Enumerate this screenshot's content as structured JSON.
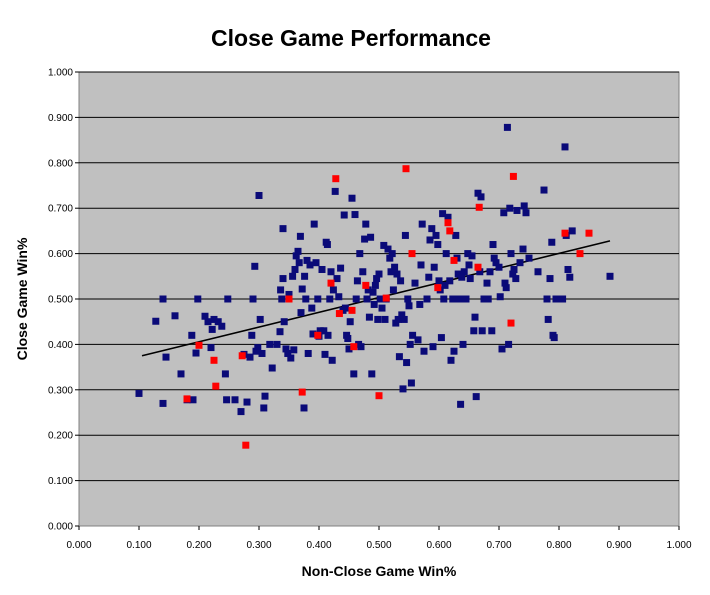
{
  "chart_data": {
    "type": "scatter",
    "title": "Close Game Performance",
    "xlabel": "Non-Close Game Win%",
    "ylabel": "Close Game Win%",
    "xlim": [
      0,
      1
    ],
    "ylim": [
      0,
      1
    ],
    "x_ticks": [
      "0.000",
      "0.100",
      "0.200",
      "0.300",
      "0.400",
      "0.500",
      "0.600",
      "0.700",
      "0.800",
      "0.900",
      "1.000"
    ],
    "y_ticks": [
      "0.000",
      "0.100",
      "0.200",
      "0.300",
      "0.400",
      "0.500",
      "0.600",
      "0.700",
      "0.800",
      "0.900",
      "1.000"
    ],
    "grid": "horizontal",
    "plot_background": "#c0c0c0",
    "trendline": {
      "x": [
        0.105,
        0.885
      ],
      "y": [
        0.375,
        0.628
      ],
      "color": "#000000"
    },
    "series": [
      {
        "color": "#0a0a78",
        "points": [
          [
            0.1,
            0.292
          ],
          [
            0.128,
            0.451
          ],
          [
            0.14,
            0.5
          ],
          [
            0.14,
            0.27
          ],
          [
            0.145,
            0.372
          ],
          [
            0.16,
            0.463
          ],
          [
            0.17,
            0.335
          ],
          [
            0.18,
            0.278
          ],
          [
            0.188,
            0.42
          ],
          [
            0.19,
            0.278
          ],
          [
            0.195,
            0.381
          ],
          [
            0.198,
            0.5
          ],
          [
            0.21,
            0.462
          ],
          [
            0.215,
            0.45
          ],
          [
            0.22,
            0.393
          ],
          [
            0.222,
            0.433
          ],
          [
            0.225,
            0.455
          ],
          [
            0.232,
            0.45
          ],
          [
            0.238,
            0.44
          ],
          [
            0.244,
            0.335
          ],
          [
            0.246,
            0.278
          ],
          [
            0.248,
            0.5
          ],
          [
            0.26,
            0.278
          ],
          [
            0.27,
            0.252
          ],
          [
            0.275,
            0.378
          ],
          [
            0.28,
            0.273
          ],
          [
            0.285,
            0.372
          ],
          [
            0.288,
            0.42
          ],
          [
            0.29,
            0.5
          ],
          [
            0.293,
            0.572
          ],
          [
            0.295,
            0.385
          ],
          [
            0.298,
            0.393
          ],
          [
            0.3,
            0.728
          ],
          [
            0.302,
            0.455
          ],
          [
            0.305,
            0.38
          ],
          [
            0.308,
            0.26
          ],
          [
            0.31,
            0.286
          ],
          [
            0.318,
            0.4
          ],
          [
            0.322,
            0.348
          ],
          [
            0.33,
            0.4
          ],
          [
            0.335,
            0.428
          ],
          [
            0.336,
            0.52
          ],
          [
            0.338,
            0.5
          ],
          [
            0.34,
            0.545
          ],
          [
            0.34,
            0.655
          ],
          [
            0.342,
            0.45
          ],
          [
            0.345,
            0.39
          ],
          [
            0.348,
            0.38
          ],
          [
            0.35,
            0.51
          ],
          [
            0.353,
            0.37
          ],
          [
            0.356,
            0.55
          ],
          [
            0.358,
            0.388
          ],
          [
            0.36,
            0.565
          ],
          [
            0.362,
            0.595
          ],
          [
            0.365,
            0.605
          ],
          [
            0.367,
            0.58
          ],
          [
            0.369,
            0.638
          ],
          [
            0.37,
            0.47
          ],
          [
            0.372,
            0.522
          ],
          [
            0.375,
            0.26
          ],
          [
            0.376,
            0.55
          ],
          [
            0.378,
            0.5
          ],
          [
            0.38,
            0.585
          ],
          [
            0.382,
            0.38
          ],
          [
            0.385,
            0.575
          ],
          [
            0.388,
            0.48
          ],
          [
            0.39,
            0.423
          ],
          [
            0.392,
            0.665
          ],
          [
            0.395,
            0.58
          ],
          [
            0.398,
            0.5
          ],
          [
            0.4,
            0.418
          ],
          [
            0.402,
            0.43
          ],
          [
            0.405,
            0.565
          ],
          [
            0.408,
            0.43
          ],
          [
            0.41,
            0.378
          ],
          [
            0.412,
            0.625
          ],
          [
            0.414,
            0.62
          ],
          [
            0.415,
            0.42
          ],
          [
            0.418,
            0.5
          ],
          [
            0.42,
            0.56
          ],
          [
            0.422,
            0.365
          ],
          [
            0.424,
            0.52
          ],
          [
            0.427,
            0.737
          ],
          [
            0.43,
            0.545
          ],
          [
            0.433,
            0.505
          ],
          [
            0.436,
            0.568
          ],
          [
            0.44,
            0.475
          ],
          [
            0.442,
            0.685
          ],
          [
            0.444,
            0.48
          ],
          [
            0.446,
            0.42
          ],
          [
            0.448,
            0.413
          ],
          [
            0.45,
            0.39
          ],
          [
            0.452,
            0.45
          ],
          [
            0.455,
            0.722
          ],
          [
            0.458,
            0.335
          ],
          [
            0.46,
            0.686
          ],
          [
            0.462,
            0.5
          ],
          [
            0.464,
            0.54
          ],
          [
            0.466,
            0.4
          ],
          [
            0.468,
            0.6
          ],
          [
            0.47,
            0.395
          ],
          [
            0.473,
            0.56
          ],
          [
            0.476,
            0.632
          ],
          [
            0.478,
            0.665
          ],
          [
            0.48,
            0.5
          ],
          [
            0.482,
            0.52
          ],
          [
            0.484,
            0.46
          ],
          [
            0.486,
            0.636
          ],
          [
            0.488,
            0.335
          ],
          [
            0.49,
            0.515
          ],
          [
            0.492,
            0.488
          ],
          [
            0.494,
            0.53
          ],
          [
            0.496,
            0.545
          ],
          [
            0.498,
            0.455
          ],
          [
            0.5,
            0.555
          ],
          [
            0.502,
            0.5
          ],
          [
            0.505,
            0.48
          ],
          [
            0.508,
            0.618
          ],
          [
            0.51,
            0.455
          ],
          [
            0.512,
            0.5
          ],
          [
            0.515,
            0.61
          ],
          [
            0.518,
            0.59
          ],
          [
            0.52,
            0.56
          ],
          [
            0.522,
            0.6
          ],
          [
            0.524,
            0.52
          ],
          [
            0.526,
            0.57
          ],
          [
            0.528,
            0.447
          ],
          [
            0.53,
            0.555
          ],
          [
            0.532,
            0.455
          ],
          [
            0.534,
            0.373
          ],
          [
            0.536,
            0.54
          ],
          [
            0.538,
            0.465
          ],
          [
            0.54,
            0.302
          ],
          [
            0.542,
            0.455
          ],
          [
            0.544,
            0.64
          ],
          [
            0.546,
            0.36
          ],
          [
            0.548,
            0.5
          ],
          [
            0.55,
            0.485
          ],
          [
            0.552,
            0.4
          ],
          [
            0.554,
            0.315
          ],
          [
            0.556,
            0.42
          ],
          [
            0.56,
            0.535
          ],
          [
            0.565,
            0.41
          ],
          [
            0.568,
            0.488
          ],
          [
            0.57,
            0.575
          ],
          [
            0.572,
            0.665
          ],
          [
            0.575,
            0.385
          ],
          [
            0.58,
            0.5
          ],
          [
            0.583,
            0.548
          ],
          [
            0.585,
            0.63
          ],
          [
            0.588,
            0.655
          ],
          [
            0.59,
            0.395
          ],
          [
            0.592,
            0.57
          ],
          [
            0.595,
            0.64
          ],
          [
            0.598,
            0.62
          ],
          [
            0.6,
            0.54
          ],
          [
            0.602,
            0.52
          ],
          [
            0.604,
            0.415
          ],
          [
            0.606,
            0.688
          ],
          [
            0.608,
            0.5
          ],
          [
            0.61,
            0.53
          ],
          [
            0.612,
            0.6
          ],
          [
            0.615,
            0.68
          ],
          [
            0.618,
            0.54
          ],
          [
            0.62,
            0.365
          ],
          [
            0.623,
            0.5
          ],
          [
            0.625,
            0.385
          ],
          [
            0.628,
            0.64
          ],
          [
            0.63,
            0.59
          ],
          [
            0.632,
            0.555
          ],
          [
            0.634,
            0.5
          ],
          [
            0.636,
            0.268
          ],
          [
            0.638,
            0.548
          ],
          [
            0.64,
            0.4
          ],
          [
            0.642,
            0.56
          ],
          [
            0.645,
            0.5
          ],
          [
            0.648,
            0.6
          ],
          [
            0.65,
            0.575
          ],
          [
            0.652,
            0.545
          ],
          [
            0.655,
            0.595
          ],
          [
            0.658,
            0.43
          ],
          [
            0.66,
            0.46
          ],
          [
            0.662,
            0.285
          ],
          [
            0.665,
            0.733
          ],
          [
            0.668,
            0.56
          ],
          [
            0.67,
            0.725
          ],
          [
            0.672,
            0.43
          ],
          [
            0.675,
            0.5
          ],
          [
            0.68,
            0.535
          ],
          [
            0.682,
            0.5
          ],
          [
            0.685,
            0.56
          ],
          [
            0.688,
            0.43
          ],
          [
            0.69,
            0.62
          ],
          [
            0.692,
            0.59
          ],
          [
            0.695,
            0.58
          ],
          [
            0.7,
            0.57
          ],
          [
            0.702,
            0.505
          ],
          [
            0.705,
            0.39
          ],
          [
            0.708,
            0.69
          ],
          [
            0.71,
            0.535
          ],
          [
            0.712,
            0.525
          ],
          [
            0.714,
            0.878
          ],
          [
            0.716,
            0.4
          ],
          [
            0.718,
            0.7
          ],
          [
            0.72,
            0.6
          ],
          [
            0.723,
            0.555
          ],
          [
            0.725,
            0.565
          ],
          [
            0.728,
            0.545
          ],
          [
            0.73,
            0.695
          ],
          [
            0.735,
            0.58
          ],
          [
            0.74,
            0.61
          ],
          [
            0.742,
            0.705
          ],
          [
            0.745,
            0.69
          ],
          [
            0.75,
            0.59
          ],
          [
            0.765,
            0.56
          ],
          [
            0.775,
            0.74
          ],
          [
            0.78,
            0.5
          ],
          [
            0.782,
            0.455
          ],
          [
            0.785,
            0.545
          ],
          [
            0.788,
            0.625
          ],
          [
            0.79,
            0.42
          ],
          [
            0.792,
            0.415
          ],
          [
            0.795,
            0.5
          ],
          [
            0.8,
            0.5
          ],
          [
            0.806,
            0.5
          ],
          [
            0.81,
            0.835
          ],
          [
            0.812,
            0.64
          ],
          [
            0.815,
            0.565
          ],
          [
            0.818,
            0.548
          ],
          [
            0.822,
            0.65
          ],
          [
            0.885,
            0.55
          ]
        ]
      },
      {
        "color": "#ff0000",
        "points": [
          [
            0.18,
            0.28
          ],
          [
            0.2,
            0.398
          ],
          [
            0.225,
            0.365
          ],
          [
            0.228,
            0.308
          ],
          [
            0.272,
            0.375
          ],
          [
            0.278,
            0.178
          ],
          [
            0.35,
            0.5
          ],
          [
            0.372,
            0.295
          ],
          [
            0.398,
            0.42
          ],
          [
            0.42,
            0.535
          ],
          [
            0.428,
            0.765
          ],
          [
            0.434,
            0.468
          ],
          [
            0.455,
            0.475
          ],
          [
            0.458,
            0.395
          ],
          [
            0.478,
            0.53
          ],
          [
            0.5,
            0.287
          ],
          [
            0.512,
            0.502
          ],
          [
            0.545,
            0.787
          ],
          [
            0.555,
            0.6
          ],
          [
            0.598,
            0.525
          ],
          [
            0.615,
            0.668
          ],
          [
            0.618,
            0.65
          ],
          [
            0.625,
            0.585
          ],
          [
            0.665,
            0.57
          ],
          [
            0.667,
            0.702
          ],
          [
            0.72,
            0.447
          ],
          [
            0.724,
            0.77
          ],
          [
            0.81,
            0.645
          ],
          [
            0.835,
            0.6
          ],
          [
            0.85,
            0.645
          ]
        ]
      }
    ]
  }
}
